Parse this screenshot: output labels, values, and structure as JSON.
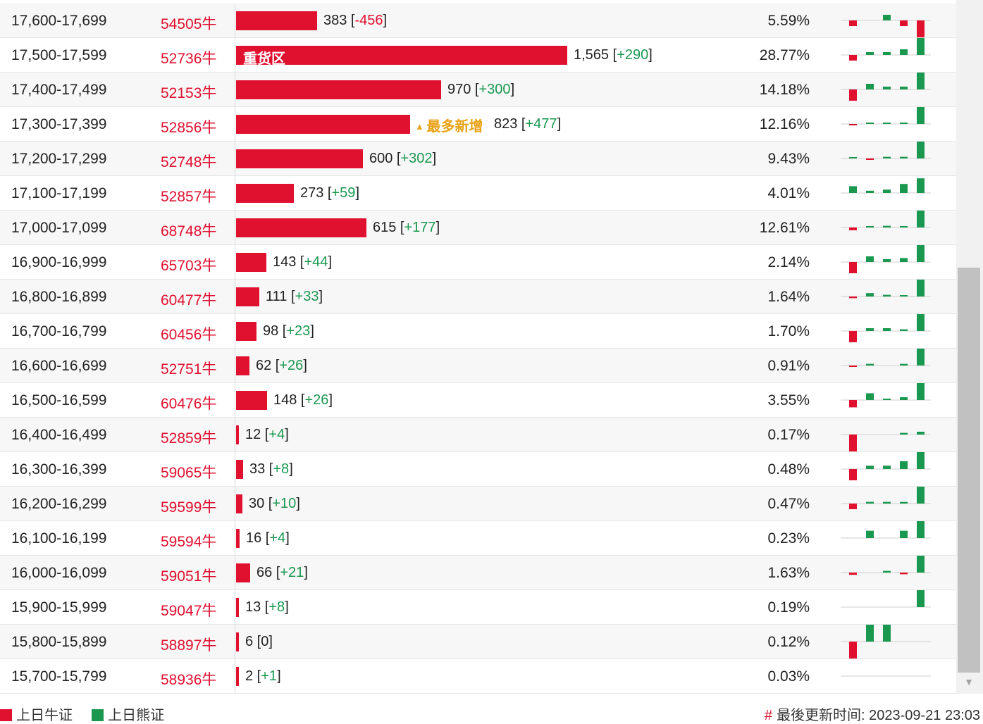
{
  "colors": {
    "bull": "#e0102f",
    "bear": "#1a9850",
    "highlight": "#e8a317"
  },
  "table": {
    "max_count": 1565,
    "rows": [
      {
        "range": "17,600-17,699",
        "code": "54505牛",
        "count": 383,
        "count_text": "383",
        "change_text": "-456",
        "change_sign": "neg",
        "pct": "5.59%",
        "spark": [
          -1,
          0,
          1,
          -1,
          -4
        ]
      },
      {
        "range": "17,500-17,599",
        "code": "52736牛",
        "count": 1565,
        "count_text": "1,565",
        "change_text": "+290",
        "change_sign": "pos",
        "pct": "28.77%",
        "bar_label": "重货区",
        "spark": [
          -1,
          0.5,
          0.5,
          1,
          3
        ]
      },
      {
        "range": "17,400-17,499",
        "code": "52153牛",
        "count": 970,
        "count_text": "970",
        "change_text": "+300",
        "change_sign": "pos",
        "pct": "14.18%",
        "spark": [
          -2,
          1,
          0.5,
          0.5,
          3
        ]
      },
      {
        "range": "17,300-17,399",
        "code": "52856牛",
        "count": 823,
        "count_text": "823",
        "change_text": "+477",
        "change_sign": "pos",
        "pct": "12.16%",
        "tag": "最多新增",
        "spark": [
          -0.2,
          0.2,
          0.2,
          0.2,
          3
        ]
      },
      {
        "range": "17,200-17,299",
        "code": "52748牛",
        "count": 600,
        "count_text": "600",
        "change_text": "+302",
        "change_sign": "pos",
        "pct": "9.43%",
        "spark": [
          0.2,
          -0.2,
          0.3,
          0.3,
          3
        ]
      },
      {
        "range": "17,100-17,199",
        "code": "52857牛",
        "count": 273,
        "count_text": "273",
        "change_text": "+59",
        "change_sign": "pos",
        "pct": "4.01%",
        "spark": [
          1.2,
          0.4,
          0.6,
          1.6,
          2.6
        ]
      },
      {
        "range": "17,000-17,099",
        "code": "68748牛",
        "count": 615,
        "count_text": "615",
        "change_text": "+177",
        "change_sign": "pos",
        "pct": "12.61%",
        "spark": [
          -0.5,
          0.2,
          0.3,
          0.2,
          3
        ]
      },
      {
        "range": "16,900-16,999",
        "code": "65703牛",
        "count": 143,
        "count_text": "143",
        "change_text": "+44",
        "change_sign": "pos",
        "pct": "2.14%",
        "spark": [
          -2,
          1,
          0.5,
          0.7,
          3
        ]
      },
      {
        "range": "16,800-16,899",
        "code": "60477牛",
        "count": 111,
        "count_text": "111",
        "change_text": "+33",
        "change_sign": "pos",
        "pct": "1.64%",
        "spark": [
          -0.3,
          0.6,
          0.3,
          0.2,
          3
        ]
      },
      {
        "range": "16,700-16,799",
        "code": "60456牛",
        "count": 98,
        "count_text": "98",
        "change_text": "+23",
        "change_sign": "pos",
        "pct": "1.70%",
        "spark": [
          -2,
          0.5,
          0.5,
          0.3,
          3
        ]
      },
      {
        "range": "16,600-16,699",
        "code": "52751牛",
        "count": 62,
        "count_text": "62",
        "change_text": "+26",
        "change_sign": "pos",
        "pct": "0.91%",
        "spark": [
          -0.2,
          0.3,
          0,
          0.3,
          3
        ]
      },
      {
        "range": "16,500-16,599",
        "code": "60476牛",
        "count": 148,
        "count_text": "148",
        "change_text": "+26",
        "change_sign": "pos",
        "pct": "3.55%",
        "spark": [
          -1.3,
          1.2,
          0.2,
          0.5,
          3
        ]
      },
      {
        "range": "16,400-16,499",
        "code": "52859牛",
        "count": 12,
        "count_text": "12",
        "change_text": "+4",
        "change_sign": "pos",
        "pct": "0.17%",
        "spark": [
          -3,
          0,
          0,
          0.3,
          0.5
        ]
      },
      {
        "range": "16,300-16,399",
        "code": "59065牛",
        "count": 33,
        "count_text": "33",
        "change_text": "+8",
        "change_sign": "pos",
        "pct": "0.48%",
        "spark": [
          -2,
          0.6,
          0.6,
          1.4,
          3
        ]
      },
      {
        "range": "16,200-16,299",
        "code": "59599牛",
        "count": 30,
        "count_text": "30",
        "change_text": "+10",
        "change_sign": "pos",
        "pct": "0.47%",
        "spark": [
          -1,
          0.3,
          0.3,
          0.3,
          3
        ]
      },
      {
        "range": "16,100-16,199",
        "code": "59594牛",
        "count": 16,
        "count_text": "16",
        "change_text": "+4",
        "change_sign": "pos",
        "pct": "0.23%",
        "spark": [
          0,
          1.3,
          0,
          1.3,
          3
        ]
      },
      {
        "range": "16,000-16,099",
        "code": "59051牛",
        "count": 66,
        "count_text": "66",
        "change_text": "+21",
        "change_sign": "pos",
        "pct": "1.63%",
        "spark": [
          -0.4,
          0,
          0.3,
          -0.3,
          3
        ]
      },
      {
        "range": "15,900-15,999",
        "code": "59047牛",
        "count": 13,
        "count_text": "13",
        "change_text": "+8",
        "change_sign": "pos",
        "pct": "0.19%",
        "spark": [
          0,
          0,
          0,
          0,
          3
        ]
      },
      {
        "range": "15,800-15,899",
        "code": "58897牛",
        "count": 6,
        "count_text": "6",
        "change_text": "0",
        "change_sign": "zero",
        "pct": "0.12%",
        "spark": [
          -3,
          3,
          3,
          0,
          0
        ]
      },
      {
        "range": "15,700-15,799",
        "code": "58936牛",
        "count": 2,
        "count_text": "2",
        "change_text": "+1",
        "change_sign": "pos",
        "pct": "0.03%",
        "spark": [
          0,
          0,
          0,
          0,
          0
        ]
      }
    ]
  },
  "legend": {
    "bull_label": "上日牛证",
    "bear_label": "上日熊证"
  },
  "footer": {
    "updated_hash": "#",
    "updated_text": "最後更新时间: 2023-09-21 23:03"
  }
}
